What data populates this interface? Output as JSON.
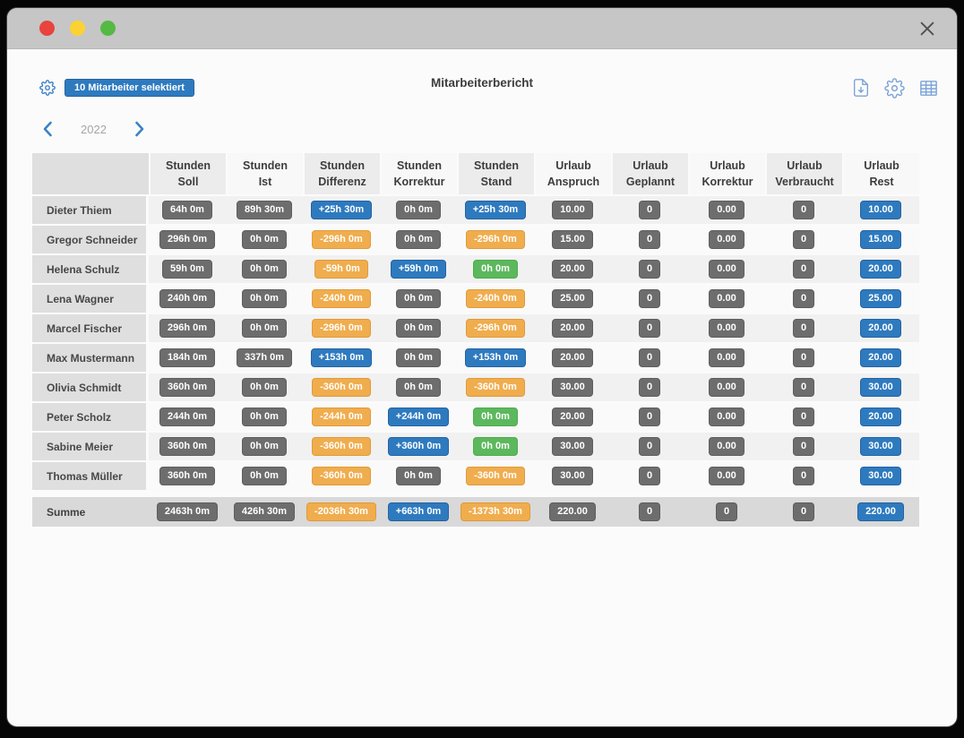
{
  "toolbar": {
    "selected_badge": "10 Mitarbeiter selektiert",
    "title": "Mitarbeiterbericht"
  },
  "year_nav": {
    "year": "2022"
  },
  "colors": {
    "gray": {
      "bg": "#6d6d6d",
      "border": "#5e5e5e"
    },
    "blue": {
      "bg": "#2e7abf",
      "border": "#2563a0"
    },
    "orange": {
      "bg": "#f0ad4e",
      "border": "#e09b3a"
    },
    "green": {
      "bg": "#5cb85c",
      "border": "#4cae4c"
    }
  },
  "table": {
    "columns": [
      [
        "",
        ""
      ],
      [
        "Stunden",
        "Soll"
      ],
      [
        "Stunden",
        "Ist"
      ],
      [
        "Stunden",
        "Differenz"
      ],
      [
        "Stunden",
        "Korrektur"
      ],
      [
        "Stunden",
        "Stand"
      ],
      [
        "Urlaub",
        "Anspruch"
      ],
      [
        "Urlaub",
        "Geplannt"
      ],
      [
        "Urlaub",
        "Korrektur"
      ],
      [
        "Urlaub",
        "Verbraucht"
      ],
      [
        "Urlaub",
        "Rest"
      ]
    ],
    "rows": [
      {
        "name": "Dieter Thiem",
        "cells": [
          [
            "64h 0m",
            "gray"
          ],
          [
            "89h 30m",
            "gray"
          ],
          [
            "+25h 30m",
            "blue"
          ],
          [
            "0h 0m",
            "gray"
          ],
          [
            "+25h 30m",
            "blue"
          ],
          [
            "10.00",
            "gray"
          ],
          [
            "0",
            "gray"
          ],
          [
            "0.00",
            "gray"
          ],
          [
            "0",
            "gray"
          ],
          [
            "10.00",
            "blue"
          ]
        ]
      },
      {
        "name": "Gregor Schneider",
        "cells": [
          [
            "296h 0m",
            "gray"
          ],
          [
            "0h 0m",
            "gray"
          ],
          [
            "-296h 0m",
            "orange"
          ],
          [
            "0h 0m",
            "gray"
          ],
          [
            "-296h 0m",
            "orange"
          ],
          [
            "15.00",
            "gray"
          ],
          [
            "0",
            "gray"
          ],
          [
            "0.00",
            "gray"
          ],
          [
            "0",
            "gray"
          ],
          [
            "15.00",
            "blue"
          ]
        ]
      },
      {
        "name": "Helena Schulz",
        "cells": [
          [
            "59h 0m",
            "gray"
          ],
          [
            "0h 0m",
            "gray"
          ],
          [
            "-59h 0m",
            "orange"
          ],
          [
            "+59h 0m",
            "blue"
          ],
          [
            "0h 0m",
            "green"
          ],
          [
            "20.00",
            "gray"
          ],
          [
            "0",
            "gray"
          ],
          [
            "0.00",
            "gray"
          ],
          [
            "0",
            "gray"
          ],
          [
            "20.00",
            "blue"
          ]
        ]
      },
      {
        "name": "Lena Wagner",
        "cells": [
          [
            "240h 0m",
            "gray"
          ],
          [
            "0h 0m",
            "gray"
          ],
          [
            "-240h 0m",
            "orange"
          ],
          [
            "0h 0m",
            "gray"
          ],
          [
            "-240h 0m",
            "orange"
          ],
          [
            "25.00",
            "gray"
          ],
          [
            "0",
            "gray"
          ],
          [
            "0.00",
            "gray"
          ],
          [
            "0",
            "gray"
          ],
          [
            "25.00",
            "blue"
          ]
        ]
      },
      {
        "name": "Marcel Fischer",
        "cells": [
          [
            "296h 0m",
            "gray"
          ],
          [
            "0h 0m",
            "gray"
          ],
          [
            "-296h 0m",
            "orange"
          ],
          [
            "0h 0m",
            "gray"
          ],
          [
            "-296h 0m",
            "orange"
          ],
          [
            "20.00",
            "gray"
          ],
          [
            "0",
            "gray"
          ],
          [
            "0.00",
            "gray"
          ],
          [
            "0",
            "gray"
          ],
          [
            "20.00",
            "blue"
          ]
        ]
      },
      {
        "name": "Max Mustermann",
        "cells": [
          [
            "184h 0m",
            "gray"
          ],
          [
            "337h 0m",
            "gray"
          ],
          [
            "+153h 0m",
            "blue"
          ],
          [
            "0h 0m",
            "gray"
          ],
          [
            "+153h 0m",
            "blue"
          ],
          [
            "20.00",
            "gray"
          ],
          [
            "0",
            "gray"
          ],
          [
            "0.00",
            "gray"
          ],
          [
            "0",
            "gray"
          ],
          [
            "20.00",
            "blue"
          ]
        ]
      },
      {
        "name": "Olivia Schmidt",
        "cells": [
          [
            "360h 0m",
            "gray"
          ],
          [
            "0h 0m",
            "gray"
          ],
          [
            "-360h 0m",
            "orange"
          ],
          [
            "0h 0m",
            "gray"
          ],
          [
            "-360h 0m",
            "orange"
          ],
          [
            "30.00",
            "gray"
          ],
          [
            "0",
            "gray"
          ],
          [
            "0.00",
            "gray"
          ],
          [
            "0",
            "gray"
          ],
          [
            "30.00",
            "blue"
          ]
        ]
      },
      {
        "name": "Peter Scholz",
        "cells": [
          [
            "244h 0m",
            "gray"
          ],
          [
            "0h 0m",
            "gray"
          ],
          [
            "-244h 0m",
            "orange"
          ],
          [
            "+244h 0m",
            "blue"
          ],
          [
            "0h 0m",
            "green"
          ],
          [
            "20.00",
            "gray"
          ],
          [
            "0",
            "gray"
          ],
          [
            "0.00",
            "gray"
          ],
          [
            "0",
            "gray"
          ],
          [
            "20.00",
            "blue"
          ]
        ]
      },
      {
        "name": "Sabine Meier",
        "cells": [
          [
            "360h 0m",
            "gray"
          ],
          [
            "0h 0m",
            "gray"
          ],
          [
            "-360h 0m",
            "orange"
          ],
          [
            "+360h 0m",
            "blue"
          ],
          [
            "0h 0m",
            "green"
          ],
          [
            "30.00",
            "gray"
          ],
          [
            "0",
            "gray"
          ],
          [
            "0.00",
            "gray"
          ],
          [
            "0",
            "gray"
          ],
          [
            "30.00",
            "blue"
          ]
        ]
      },
      {
        "name": "Thomas Müller",
        "cells": [
          [
            "360h 0m",
            "gray"
          ],
          [
            "0h 0m",
            "gray"
          ],
          [
            "-360h 0m",
            "orange"
          ],
          [
            "0h 0m",
            "gray"
          ],
          [
            "-360h 0m",
            "orange"
          ],
          [
            "30.00",
            "gray"
          ],
          [
            "0",
            "gray"
          ],
          [
            "0.00",
            "gray"
          ],
          [
            "0",
            "gray"
          ],
          [
            "30.00",
            "blue"
          ]
        ]
      }
    ],
    "sum_row": {
      "name": "Summe",
      "cells": [
        [
          "2463h 0m",
          "gray"
        ],
        [
          "426h 30m",
          "gray"
        ],
        [
          "-2036h 30m",
          "orange"
        ],
        [
          "+663h 0m",
          "blue"
        ],
        [
          "-1373h 30m",
          "orange"
        ],
        [
          "220.00",
          "gray"
        ],
        [
          "0",
          "gray"
        ],
        [
          "0",
          "gray"
        ],
        [
          "0",
          "gray"
        ],
        [
          "220.00",
          "blue"
        ]
      ]
    }
  }
}
